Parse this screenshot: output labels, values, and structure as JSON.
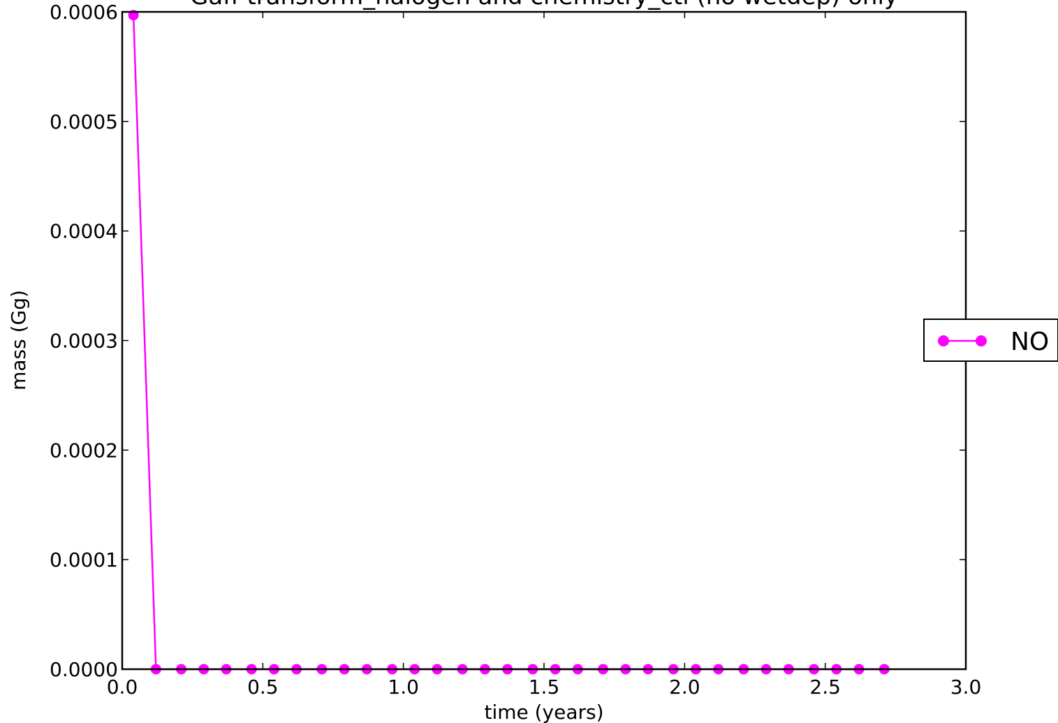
{
  "chart_data": {
    "type": "line",
    "title": "Gaff transform_halogen and chemistry_ctl (no wetdep) only",
    "xlabel": "time (years)",
    "ylabel": "mass (Gg)",
    "xlim": [
      0.0,
      3.0
    ],
    "ylim": [
      0.0,
      0.0006
    ],
    "x_ticks": [
      "0.0",
      "0.5",
      "1.0",
      "1.5",
      "2.0",
      "2.5",
      "3.0"
    ],
    "y_ticks": [
      "0.0000",
      "0.0001",
      "0.0002",
      "0.0003",
      "0.0004",
      "0.0005",
      "0.0006"
    ],
    "grid": false,
    "legend_position": "right, outside plot area",
    "series": [
      {
        "name": "NO",
        "color": "#ff00ff",
        "marker": "circle",
        "x": [
          0.04,
          0.12,
          0.21,
          0.29,
          0.37,
          0.46,
          0.54,
          0.62,
          0.71,
          0.79,
          0.87,
          0.96,
          1.04,
          1.12,
          1.21,
          1.29,
          1.37,
          1.46,
          1.54,
          1.62,
          1.71,
          1.79,
          1.87,
          1.96,
          2.04,
          2.12,
          2.21,
          2.29,
          2.37,
          2.46,
          2.54,
          2.62,
          2.71
        ],
        "y": [
          0.000597,
          0,
          0,
          0,
          0,
          0,
          0,
          0,
          0,
          0,
          0,
          0,
          0,
          0,
          0,
          0,
          0,
          0,
          0,
          0,
          0,
          0,
          0,
          0,
          0,
          0,
          0,
          0,
          0,
          0,
          0,
          0,
          0
        ]
      }
    ]
  }
}
